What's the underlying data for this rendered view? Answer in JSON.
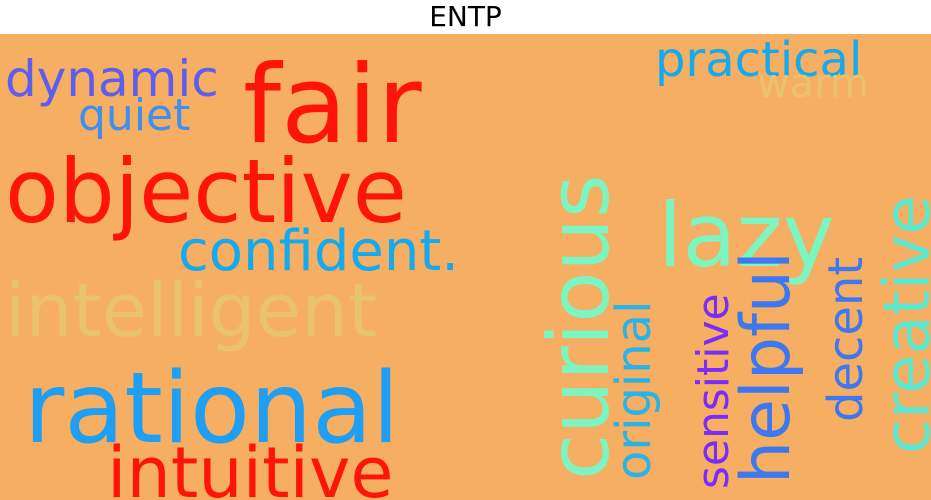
{
  "title": "ENTP",
  "background_color": "#f5ae62",
  "words": [
    {
      "text": "fair",
      "color": "#ff1409"
    },
    {
      "text": "objective",
      "color": "#ff1409"
    },
    {
      "text": "rational",
      "color": "#1f9ff4"
    },
    {
      "text": "intelligent",
      "color": "#e8c36c"
    },
    {
      "text": "curious",
      "color": "#7cf5c1"
    },
    {
      "text": "lazy",
      "color": "#7cf5c1"
    },
    {
      "text": "confident.",
      "color": "#14aaf0"
    },
    {
      "text": "intuitive",
      "color": "#ff1409"
    },
    {
      "text": "dynamic",
      "color": "#5d5ef0"
    },
    {
      "text": "quiet",
      "color": "#3d8ff0"
    },
    {
      "text": "practical",
      "color": "#14aaf0"
    },
    {
      "text": "warm",
      "color": "#e8c36c"
    },
    {
      "text": "creative",
      "color": "#5ee6ce"
    },
    {
      "text": "helpful",
      "color": "#3d78f0"
    },
    {
      "text": "sensitive",
      "color": "#7a2cff"
    },
    {
      "text": "original",
      "color": "#28b4e8"
    },
    {
      "text": "decent",
      "color": "#3d78f0"
    }
  ]
}
